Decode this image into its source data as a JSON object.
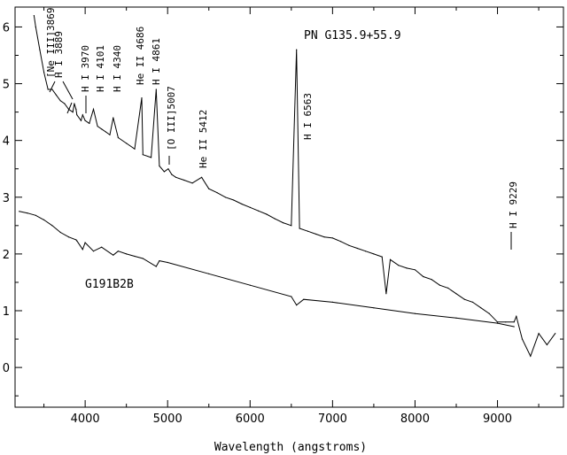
{
  "chart_data": {
    "type": "line",
    "title": "PN G135.9+55.9",
    "xlabel": "Wavelength (angstroms)",
    "ylabel": "",
    "xlim": [
      3150,
      9800
    ],
    "ylim": [
      -0.7,
      6.35
    ],
    "x_ticks": [
      {
        "value": 4000,
        "label": "4000"
      },
      {
        "value": 5000,
        "label": "5000"
      },
      {
        "value": 6000,
        "label": "6000"
      },
      {
        "value": 7000,
        "label": "7000"
      },
      {
        "value": 8000,
        "label": "8000"
      },
      {
        "value": 9000,
        "label": "9000"
      }
    ],
    "y_ticks": [
      {
        "value": 0,
        "label": "0"
      },
      {
        "value": 1,
        "label": "1"
      },
      {
        "value": 2,
        "label": "2"
      },
      {
        "value": 3,
        "label": "3"
      },
      {
        "value": 4,
        "label": "4"
      },
      {
        "value": 5,
        "label": "5"
      },
      {
        "value": 6,
        "label": "6"
      }
    ],
    "series": [
      {
        "name": "",
        "color": "#000000",
        "x": [
          3380,
          3400,
          3450,
          3500,
          3550,
          3600,
          3650,
          3700,
          3750,
          3800,
          3850,
          3869,
          3889,
          3900,
          3950,
          3970,
          4000,
          4050,
          4101,
          4150,
          4200,
          4250,
          4300,
          4340,
          4400,
          4500,
          4600,
          4686,
          4700,
          4800,
          4861,
          4900,
          4959,
          5007,
          5050,
          5100,
          5200,
          5300,
          5412,
          5500,
          5600,
          5700,
          5800,
          5900,
          6000,
          6100,
          6200,
          6300,
          6400,
          6500,
          6563,
          6600,
          6700,
          6800,
          6900,
          7000,
          7100,
          7200,
          7300,
          7400,
          7500,
          7600,
          7650,
          7700,
          7800,
          7900,
          8000,
          8100,
          8200,
          8300,
          8400,
          8500,
          8600,
          8700,
          8800,
          8900,
          9000,
          9100,
          9200,
          9229,
          9300,
          9400,
          9500,
          9600,
          9700
        ],
        "y": [
          6.2,
          6.0,
          5.6,
          5.2,
          4.9,
          4.9,
          4.8,
          4.7,
          4.65,
          4.55,
          4.5,
          4.65,
          4.55,
          4.45,
          4.35,
          4.45,
          4.35,
          4.3,
          4.55,
          4.25,
          4.2,
          4.15,
          4.1,
          4.4,
          4.05,
          3.95,
          3.85,
          4.75,
          3.75,
          3.7,
          4.9,
          3.55,
          3.45,
          3.5,
          3.4,
          3.35,
          3.3,
          3.25,
          3.35,
          3.15,
          3.08,
          3.0,
          2.95,
          2.88,
          2.82,
          2.76,
          2.7,
          2.62,
          2.55,
          2.5,
          5.6,
          2.45,
          2.4,
          2.35,
          2.3,
          2.28,
          2.22,
          2.15,
          2.1,
          2.05,
          2.0,
          1.95,
          1.3,
          1.9,
          1.8,
          1.75,
          1.72,
          1.6,
          1.55,
          1.45,
          1.4,
          1.3,
          1.2,
          1.15,
          1.05,
          0.95,
          0.8,
          0.8,
          0.8,
          0.9,
          0.5,
          0.2,
          0.6,
          0.4,
          0.6
        ]
      },
      {
        "name": "",
        "color": "#000000",
        "x": [
          3200,
          3300,
          3400,
          3500,
          3600,
          3700,
          3800,
          3889,
          3900,
          3970,
          4000,
          4101,
          4200,
          4340,
          4400,
          4500,
          4600,
          4700,
          4861,
          4900,
          5000,
          5500,
          6000,
          6500,
          6563,
          6650,
          7000,
          7500,
          8000,
          8500,
          9000,
          9200
        ],
        "y": [
          2.75,
          2.72,
          2.68,
          2.6,
          2.5,
          2.38,
          2.3,
          2.25,
          2.23,
          2.08,
          2.2,
          2.05,
          2.12,
          1.98,
          2.05,
          2.0,
          1.96,
          1.92,
          1.78,
          1.88,
          1.85,
          1.65,
          1.45,
          1.25,
          1.1,
          1.2,
          1.15,
          1.05,
          0.95,
          0.87,
          0.78,
          0.72
        ]
      }
    ],
    "annotations": [
      {
        "text": "[Ne III]3869",
        "x": 3869
      },
      {
        "text": "H I 3889",
        "x": 3889
      },
      {
        "text": "H I 3970",
        "x": 3970
      },
      {
        "text": "H I 4101",
        "x": 4101
      },
      {
        "text": "H I 4340",
        "x": 4340
      },
      {
        "text": "He II 4686",
        "x": 4686
      },
      {
        "text": "H I 4861",
        "x": 4861
      },
      {
        "text": "[O III]5007",
        "x": 5007
      },
      {
        "text": "He II 5412",
        "x": 5412
      },
      {
        "text": "H I 6563",
        "x": 6563
      },
      {
        "text": "H I 9229",
        "x": 9229
      },
      {
        "text": "G191B2B",
        "x": 4350
      }
    ]
  }
}
